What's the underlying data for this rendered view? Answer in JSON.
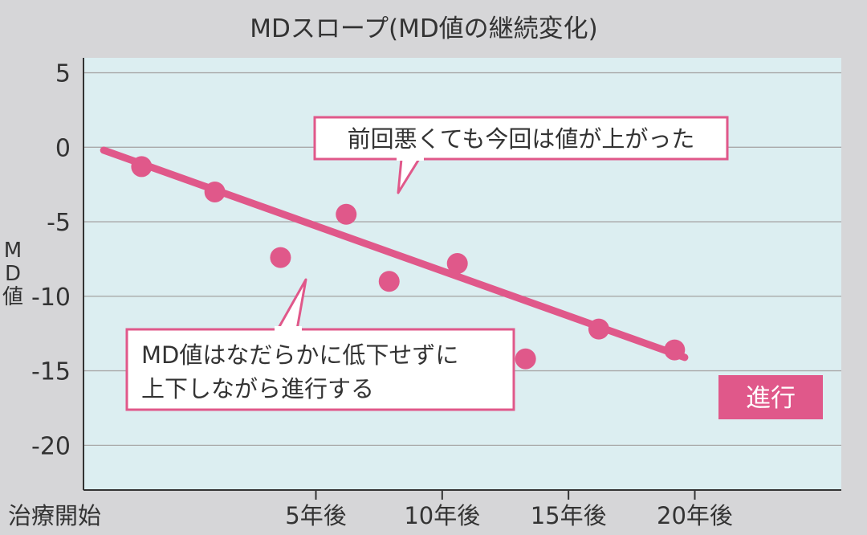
{
  "chart_data": {
    "type": "scatter",
    "title": "MDスロープ(MD値の継続変化)",
    "ylabel": "MD値",
    "x_tick_labels": [
      "治療開始",
      "5年後",
      "10年後",
      "15年後",
      "20年後"
    ],
    "x_ticks": [
      0,
      5,
      10,
      15,
      20
    ],
    "xlim": [
      -4.2,
      25.8
    ],
    "y_ticks": [
      5,
      0,
      -5,
      -10,
      -15,
      -20
    ],
    "ylim": [
      -23,
      6
    ],
    "grid": true,
    "series": [
      {
        "points": [
          {
            "x": -1.9,
            "y": -1.3
          },
          {
            "x": 1.0,
            "y": -3.0
          },
          {
            "x": 3.6,
            "y": -7.4
          },
          {
            "x": 6.2,
            "y": -4.5
          },
          {
            "x": 7.9,
            "y": -9.0
          },
          {
            "x": 10.6,
            "y": -7.8
          },
          {
            "x": 13.3,
            "y": -14.2
          },
          {
            "x": 16.2,
            "y": -12.2
          },
          {
            "x": 19.2,
            "y": -13.6
          }
        ],
        "color": "#e0588a"
      }
    ],
    "trendline": {
      "x": [
        -3.4,
        19.6
      ],
      "y": [
        -0.2,
        -14.1
      ],
      "color": "#e0588a"
    },
    "annotations": [
      {
        "text": "前回悪くても今回は値が上がった"
      },
      {
        "line1": "MD値はなだらかに低下せずに",
        "line2": "上下しながら進行する"
      },
      {
        "text": "進行"
      }
    ],
    "colors": {
      "plot_background": "#dceef1",
      "outer_background": "#d6d6d8",
      "accent": "#e0588a",
      "grid": "#a9a9a9"
    }
  }
}
